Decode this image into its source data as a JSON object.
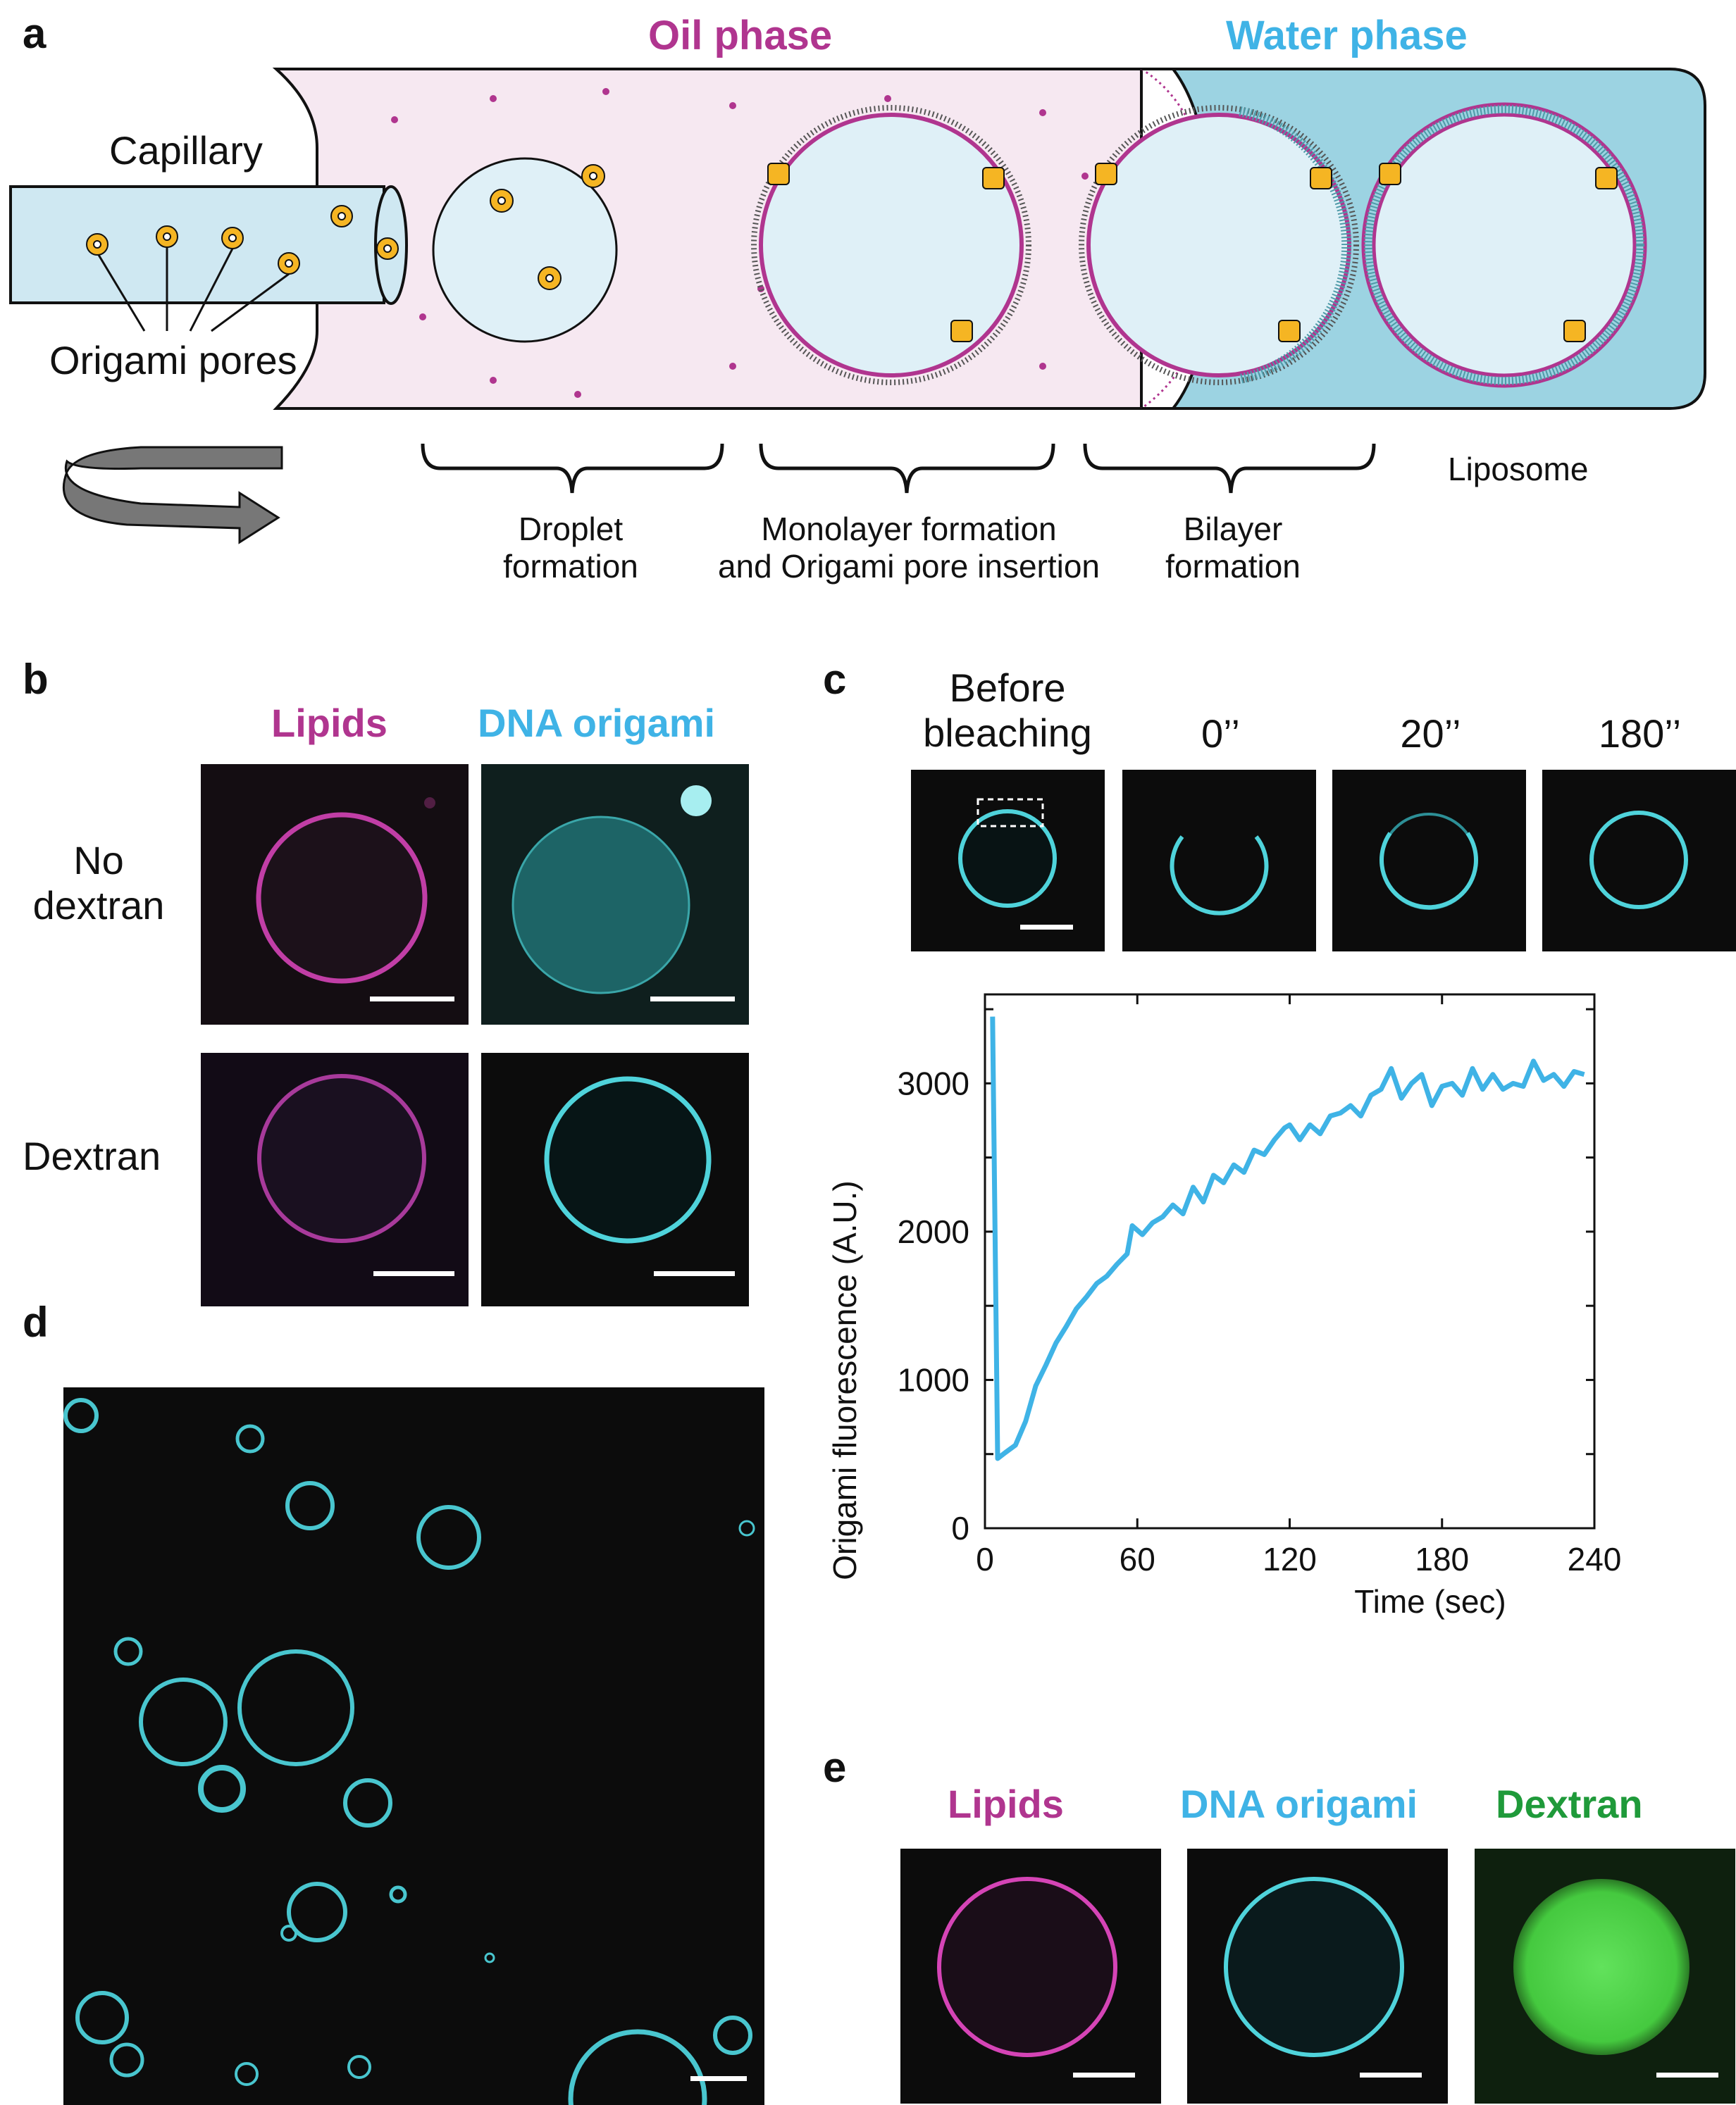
{
  "colors": {
    "magenta": "#b0358f",
    "cyan": "#3fb3e6",
    "green": "#1f9a3a",
    "oil_bg": "#f6e8f1",
    "water_bg": "#9cd3e2",
    "droplet": "#dff0f7",
    "pore": "#f5b523"
  },
  "panel_a": {
    "letter": "a",
    "oil_phase": "Oil phase",
    "water_phase": "Water phase",
    "capillary": "Capillary",
    "origami_pores": "Origami pores",
    "liposome": "Liposome",
    "step1_line1": "Droplet",
    "step1_line2": "formation",
    "step2_line1": "Monolayer formation",
    "step2_line2": "and Origami pore insertion",
    "step3_line1": "Bilayer",
    "step3_line2": "formation"
  },
  "panel_b": {
    "letter": "b",
    "col1": "Lipids",
    "col2": "DNA origami",
    "row1_line1": "No",
    "row1_line2": "dextran",
    "row2": "Dextran"
  },
  "panel_c": {
    "letter": "c",
    "frame1_line1": "Before",
    "frame1_line2": "bleaching",
    "frame2": "0’’",
    "frame3": "20’’",
    "frame4": "180’’"
  },
  "panel_d": {
    "letter": "d"
  },
  "panel_e": {
    "letter": "e",
    "col1": "Lipids",
    "col2": "DNA origami",
    "col3": "Dextran"
  },
  "chart_data": {
    "type": "line",
    "xlabel": "Time (sec)",
    "ylabel": "Origami fluorescence (A.U.)",
    "xlim": [
      0,
      240
    ],
    "ylim": [
      0,
      3600
    ],
    "xticks": [
      0,
      60,
      120,
      180,
      240
    ],
    "yticks": [
      0,
      1000,
      2000,
      3000
    ],
    "color": "#3fb3e6",
    "series": [
      {
        "x": [
          3,
          5,
          8,
          12,
          16,
          20,
          24,
          28,
          32,
          36,
          40,
          44,
          48,
          52,
          56,
          58,
          62,
          66,
          70,
          74,
          78,
          82,
          86,
          90,
          94,
          98,
          102,
          106,
          110,
          114,
          118,
          120,
          124,
          128,
          132,
          136,
          140,
          144,
          148,
          152,
          156,
          160,
          164,
          168,
          172,
          176,
          180,
          184,
          188,
          192,
          196,
          200,
          204,
          208,
          212,
          216,
          220,
          224,
          228,
          232,
          236
        ],
        "y": [
          3450,
          470,
          510,
          560,
          720,
          960,
          1100,
          1250,
          1360,
          1480,
          1560,
          1650,
          1700,
          1780,
          1850,
          2040,
          1980,
          2060,
          2100,
          2180,
          2120,
          2300,
          2200,
          2380,
          2330,
          2450,
          2400,
          2550,
          2520,
          2620,
          2700,
          2720,
          2620,
          2720,
          2660,
          2780,
          2800,
          2850,
          2780,
          2920,
          2960,
          3100,
          2900,
          3000,
          3060,
          2850,
          2980,
          3000,
          2920,
          3100,
          2960,
          3060,
          2960,
          3000,
          2980,
          3150,
          3020,
          3060,
          2980,
          3080,
          3060
        ]
      }
    ]
  }
}
